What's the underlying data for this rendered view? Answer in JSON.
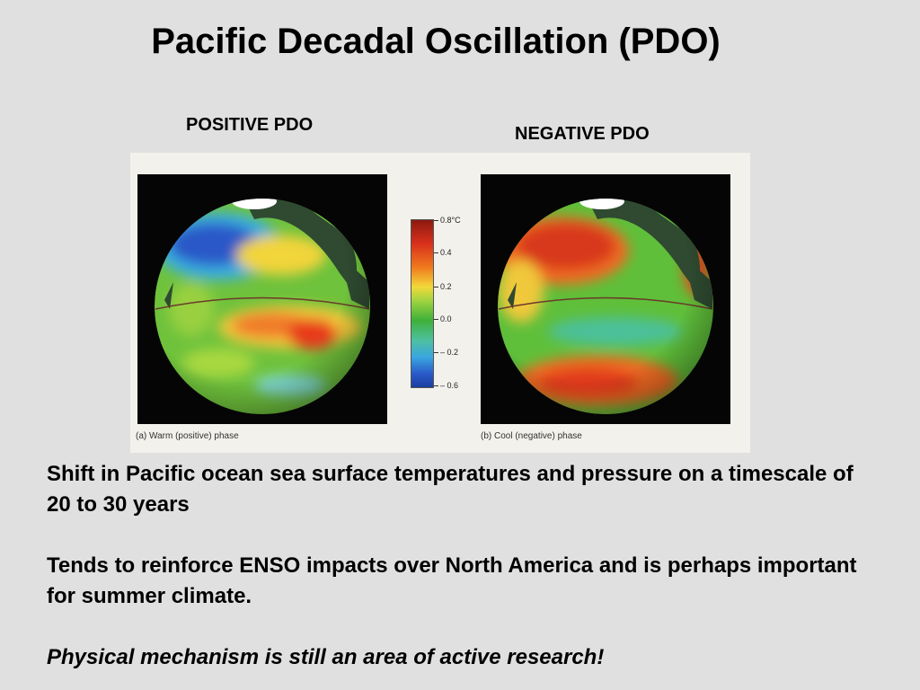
{
  "slide": {
    "title": "Pacific Decadal Oscillation (PDO)",
    "label_positive": "POSITIVE PDO",
    "label_negative": "NEGATIVE PDO",
    "figure": {
      "caption_positive": "(a) Warm (positive) phase",
      "caption_negative": "(b) Cool (negative) phase",
      "scale_ticks": [
        "0.8°C",
        "0.4",
        "0.2",
        "0.0",
        "– 0.2",
        "– 0.6"
      ]
    },
    "paragraphs": [
      "Shift in Pacific ocean sea surface temperatures and pressure on a timescale of 20 to 30 years",
      "Tends to reinforce ENSO impacts over North America and is perhaps important for summer climate.",
      "Physical mechanism is still an area of active research!"
    ]
  }
}
